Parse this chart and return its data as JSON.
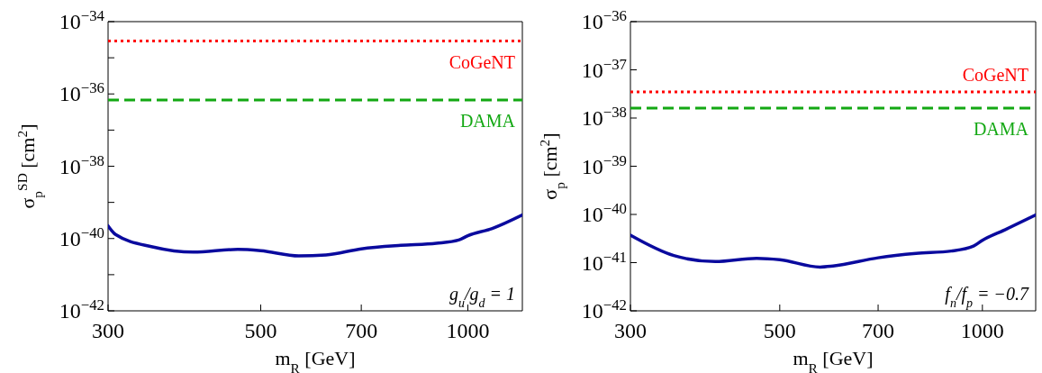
{
  "chart_data": [
    {
      "type": "line",
      "xlabel": "m$_{R}$ [GeV]",
      "ylabel": "σ$_{p}$$^{SD}$ [cm$^{2}$]",
      "log": "xy",
      "grid": false,
      "line_style": "solid",
      "marker": "none",
      "xlim": [
        300,
        1200
      ],
      "xticks": [
        300,
        500,
        700,
        1000
      ],
      "ylim": [
        1e-42,
        1e-34
      ],
      "yticks": [
        {
          "value": 1e-42,
          "label": "10$^{−42}$"
        },
        {
          "value": 1e-41,
          "label": null
        },
        {
          "value": 1e-40,
          "label": "10$^{−40}$"
        },
        {
          "value": 1e-39,
          "label": null
        },
        {
          "value": 1e-38,
          "label": "10$^{−38}$"
        },
        {
          "value": 1e-37,
          "label": null
        },
        {
          "value": 1e-36,
          "label": "10$^{−36}$"
        },
        {
          "value": 1e-35,
          "label": null
        },
        {
          "value": 1e-34,
          "label": "10$^{−34}$"
        }
      ],
      "series": [
        {
          "color": "#0a0a9e",
          "x": [
            300,
            307.6,
            348,
            399,
            463,
            500,
            568,
            622,
            700,
            799,
            900,
            970,
            1000,
            1085,
            1200
          ],
          "values": [
            2.24e-40,
            1.29e-40,
            5.9e-41,
            4.2e-41,
            5e-41,
            4.6e-41,
            3.3e-41,
            3.5e-41,
            5.2e-41,
            6.5e-41,
            7.4e-41,
            9.1e-41,
            1.2e-40,
            1.9e-40,
            4.5e-40
          ]
        }
      ],
      "ref_lines": [
        {
          "axis": "y",
          "value": 2.9e-35,
          "label": "CoGeNT",
          "color": "#ff0000",
          "line_style": "dotted"
        },
        {
          "axis": "y",
          "value": 6.8e-37,
          "label": "DAMA",
          "color": "#13a813",
          "line_style": "dashed"
        }
      ],
      "annotations": [
        "g$_{u}$/g$_{d}$ = 1"
      ]
    },
    {
      "type": "line",
      "xlabel": "m$_{R}$ [GeV]",
      "ylabel": "σ$_{p}$ [cm$^{2}$]",
      "log": "xy",
      "grid": false,
      "line_style": "solid",
      "marker": "none",
      "xlim": [
        300,
        1200
      ],
      "xticks": [
        300,
        500,
        700,
        1000
      ],
      "ylim": [
        1e-42,
        1e-36
      ],
      "yticks": [
        {
          "value": 1e-42,
          "label": "10$^{−42}$"
        },
        {
          "value": 1e-41,
          "label": "10$^{−41}$"
        },
        {
          "value": 1e-40,
          "label": "10$^{−40}$"
        },
        {
          "value": 1e-39,
          "label": "10$^{−39}$"
        },
        {
          "value": 1e-38,
          "label": "10$^{−38}$"
        },
        {
          "value": 1e-37,
          "label": "10$^{−37}$"
        },
        {
          "value": 1e-36,
          "label": "10$^{−36}$"
        }
      ],
      "series": [
        {
          "color": "#0a0a9e",
          "x": [
            300,
            348,
            401,
            462,
            500,
            574,
            600,
            700,
            797,
            899,
            970,
            1000,
            1080,
            1200
          ],
          "values": [
            3.7e-41,
            1.4e-41,
            1.05e-41,
            1.23e-41,
            1.15e-41,
            8.1e-42,
            8.5e-42,
            1.26e-41,
            1.55e-41,
            1.74e-41,
            2.2e-41,
            2.9e-41,
            4.8e-41,
            9.8e-41
          ]
        }
      ],
      "ref_lines": [
        {
          "axis": "y",
          "value": 3.5e-38,
          "label": "CoGeNT",
          "color": "#ff0000",
          "line_style": "dotted"
        },
        {
          "axis": "y",
          "value": 1.6e-38,
          "label": "DAMA",
          "color": "#13a813",
          "line_style": "dashed"
        }
      ],
      "annotations": [
        "f$_{n}$/f$_{p}$ = −0.7"
      ]
    }
  ]
}
